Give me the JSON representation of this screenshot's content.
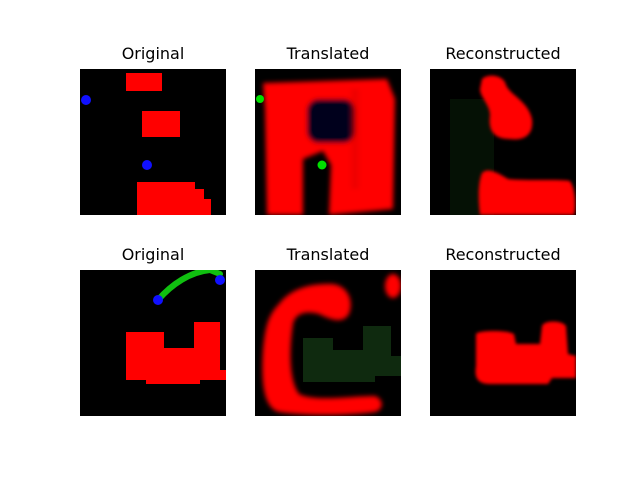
{
  "figure": {
    "rows": [
      {
        "panels": [
          {
            "title": "Original"
          },
          {
            "title": "Translated"
          },
          {
            "title": "Reconstructed"
          }
        ]
      },
      {
        "panels": [
          {
            "title": "Original"
          },
          {
            "title": "Translated"
          },
          {
            "title": "Reconstructed"
          }
        ]
      }
    ]
  },
  "colors": {
    "background": "#000000",
    "shape_red": "#ff0000",
    "dot_blue": "#0000ff",
    "dot_green": "#00dd00",
    "faint_green": "#0f2a0f",
    "faint_navy": "#050a28"
  }
}
